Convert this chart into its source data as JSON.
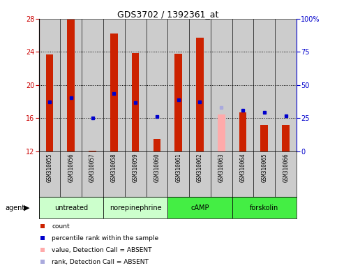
{
  "title": "GDS3702 / 1392361_at",
  "samples": [
    "GSM310055",
    "GSM310056",
    "GSM310057",
    "GSM310058",
    "GSM310059",
    "GSM310060",
    "GSM310061",
    "GSM310062",
    "GSM310063",
    "GSM310064",
    "GSM310065",
    "GSM310066"
  ],
  "count_values": [
    23.7,
    27.9,
    12.1,
    26.2,
    23.9,
    13.5,
    23.8,
    25.7,
    null,
    16.7,
    15.2,
    15.2
  ],
  "count_absent": [
    null,
    null,
    null,
    null,
    null,
    null,
    null,
    null,
    16.5,
    null,
    null,
    null
  ],
  "rank_values": [
    18.0,
    18.5,
    16.0,
    19.0,
    17.9,
    16.2,
    18.2,
    18.0,
    null,
    17.0,
    16.7,
    16.3
  ],
  "rank_absent": [
    null,
    null,
    null,
    null,
    null,
    null,
    null,
    null,
    17.3,
    null,
    null,
    null
  ],
  "ylim": [
    12,
    28
  ],
  "yticks": [
    12,
    16,
    20,
    24,
    28
  ],
  "y2lim": [
    0,
    100
  ],
  "y2ticks": [
    0,
    25,
    50,
    75,
    100
  ],
  "groups": [
    {
      "label": "untreated",
      "start": 0,
      "end": 3,
      "color": "#ccffcc"
    },
    {
      "label": "norepinephrine",
      "start": 3,
      "end": 6,
      "color": "#ccffcc"
    },
    {
      "label": "cAMP",
      "start": 6,
      "end": 9,
      "color": "#44ee44"
    },
    {
      "label": "forskolin",
      "start": 9,
      "end": 12,
      "color": "#44ee44"
    }
  ],
  "bar_width": 0.35,
  "count_color": "#cc2200",
  "count_absent_color": "#ffaaaa",
  "rank_color": "#0000cc",
  "rank_absent_color": "#aaaadd",
  "bg_color": "#cccccc",
  "left_axis_color": "#cc0000",
  "right_axis_color": "#0000cc",
  "legend_items": [
    {
      "color": "#cc2200",
      "marker": "s",
      "label": "count"
    },
    {
      "color": "#0000cc",
      "marker": "s",
      "label": "percentile rank within the sample"
    },
    {
      "color": "#ffaaaa",
      "marker": "s",
      "label": "value, Detection Call = ABSENT"
    },
    {
      "color": "#aaaadd",
      "marker": "s",
      "label": "rank, Detection Call = ABSENT"
    }
  ]
}
